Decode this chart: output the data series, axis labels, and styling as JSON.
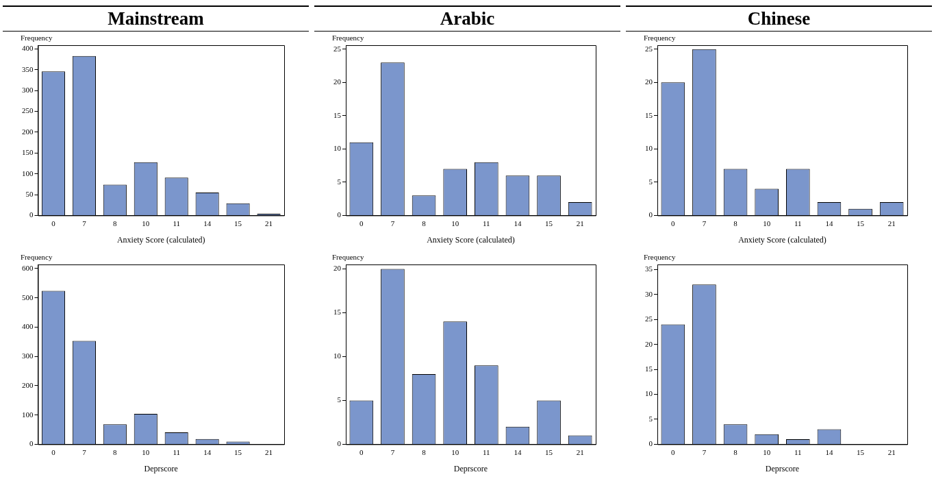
{
  "chart_data": [
    {
      "type": "bar",
      "title": "Mainstream",
      "xlabel": "Anxiety Score (calculated)",
      "ylabel": "Frequency",
      "categories": [
        "0",
        "7",
        "8",
        "10",
        "11",
        "14",
        "15",
        "21"
      ],
      "values": [
        346,
        383,
        74,
        128,
        91,
        55,
        29,
        4
      ],
      "color": "#7b96cc",
      "ylim": [
        0,
        409
      ],
      "yticks": [
        0,
        50,
        100,
        150,
        200,
        250,
        300,
        350,
        400
      ]
    },
    {
      "type": "bar",
      "title": "Arabic",
      "xlabel": "Anxiety Score (calculated)",
      "ylabel": "Frequency",
      "categories": [
        "0",
        "7",
        "8",
        "10",
        "11",
        "14",
        "15",
        "21"
      ],
      "values": [
        11,
        23,
        3,
        7,
        8,
        6,
        6,
        2
      ],
      "color": "#7b96cc",
      "ylim": [
        0,
        25.6
      ],
      "yticks": [
        0,
        5,
        10,
        15,
        20,
        25
      ]
    },
    {
      "type": "bar",
      "title": "Chinese",
      "xlabel": "Anxiety Score (calculated)",
      "ylabel": "Frequency",
      "categories": [
        "0",
        "7",
        "8",
        "10",
        "11",
        "14",
        "15",
        "21"
      ],
      "values": [
        20,
        25,
        7,
        4,
        7,
        2,
        1,
        2
      ],
      "color": "#7b96cc",
      "ylim": [
        0,
        25.6
      ],
      "yticks": [
        0,
        5,
        10,
        15,
        20,
        25
      ]
    },
    {
      "type": "bar",
      "xlabel": "Deprscore",
      "ylabel": "Frequency",
      "categories": [
        "0",
        "7",
        "8",
        "10",
        "11",
        "14",
        "15",
        "21"
      ],
      "values": [
        524,
        353,
        68,
        104,
        41,
        18,
        9,
        0
      ],
      "color": "#7b96cc",
      "ylim": [
        0,
        614
      ],
      "yticks": [
        0,
        100,
        200,
        300,
        400,
        500,
        600
      ]
    },
    {
      "type": "bar",
      "xlabel": "Deprscore",
      "ylabel": "Frequency",
      "categories": [
        "0",
        "7",
        "8",
        "10",
        "11",
        "14",
        "15",
        "21"
      ],
      "values": [
        5,
        20,
        8,
        14,
        9,
        2,
        5,
        1
      ],
      "color": "#7b96cc",
      "ylim": [
        0,
        20.5
      ],
      "yticks": [
        0,
        5,
        10,
        15,
        20
      ]
    },
    {
      "type": "bar",
      "xlabel": "Deprscore",
      "ylabel": "Frequency",
      "categories": [
        "0",
        "7",
        "8",
        "10",
        "11",
        "14",
        "15",
        "21"
      ],
      "values": [
        24,
        32,
        4,
        2,
        1,
        3,
        0,
        0
      ],
      "color": "#7b96cc",
      "ylim": [
        0,
        36
      ],
      "yticks": [
        0,
        5,
        10,
        15,
        20,
        25,
        30,
        35
      ]
    }
  ]
}
